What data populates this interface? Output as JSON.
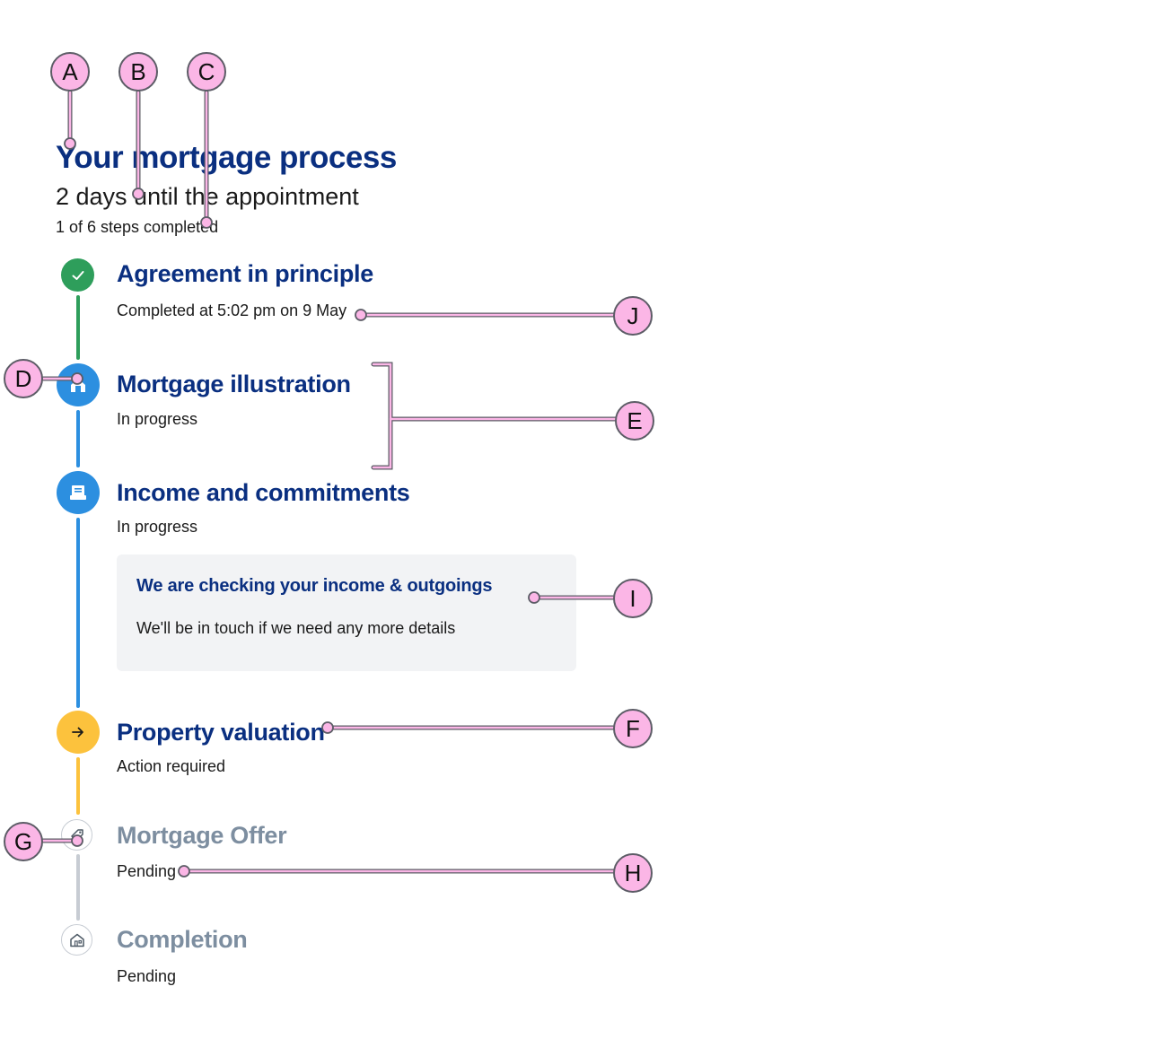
{
  "header": {
    "title": "Your mortgage process",
    "subtitle": "2 days until the appointment",
    "steps_completed": "1 of 6 steps completed"
  },
  "steps": [
    {
      "title": "Agreement in principle",
      "status": "Completed at 5:02 pm on 9 May",
      "state": "completed",
      "icon": "check-icon",
      "color": "#2e9e5b"
    },
    {
      "title": "Mortgage illustration",
      "status": "In progress",
      "state": "in-progress",
      "icon": "house-document-icon",
      "color": "#2c8fe0"
    },
    {
      "title": "Income and commitments",
      "status": "In progress",
      "state": "in-progress",
      "icon": "documents-icon",
      "color": "#2c8fe0"
    },
    {
      "title": "Property valuation",
      "status": "Action required",
      "state": "action-required",
      "icon": "arrow-right-icon",
      "color": "#fcc23d"
    },
    {
      "title": "Mortgage Offer",
      "status": "Pending",
      "state": "pending",
      "icon": "price-tag-icon",
      "color": "#c7ccd3"
    },
    {
      "title": "Completion",
      "status": "Pending",
      "state": "pending",
      "icon": "house-icon",
      "color": "#c7ccd3"
    }
  ],
  "info_card": {
    "title": "We are checking your income & outgoings",
    "text": "We'll be in touch if we need any more details"
  },
  "callouts": [
    "A",
    "B",
    "C",
    "D",
    "E",
    "F",
    "G",
    "H",
    "I",
    "J"
  ],
  "colors": {
    "title_blue": "#0a2f80",
    "pending_gray": "#7d8ea0",
    "callout_pink": "#fbb6e6",
    "callout_border": "#5c5c66"
  }
}
